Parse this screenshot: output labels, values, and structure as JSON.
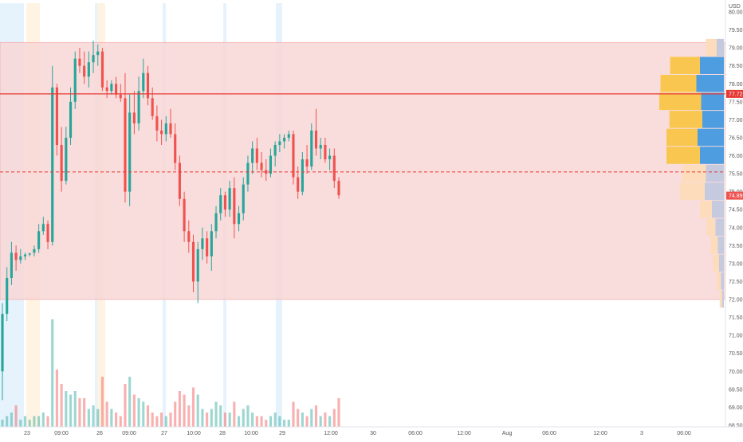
{
  "currency": "USD",
  "price_axis": {
    "ticks": [
      "80.00",
      "79.50",
      "79.00",
      "78.50",
      "78.00",
      "77.50",
      "77.00",
      "76.50",
      "76.00",
      "75.50",
      "75.00",
      "74.50",
      "74.00",
      "73.50",
      "73.00",
      "72.50",
      "72.00",
      "71.50",
      "71.00",
      "70.50",
      "70.00",
      "69.50",
      "69.00",
      "68.50"
    ],
    "last_price_label": "74.89",
    "line_price_label": "77.72"
  },
  "time_axis": {
    "ticks": [
      "23",
      "09:00",
      "26",
      "09:00",
      "27",
      "10:00",
      "28",
      "10:00",
      "29",
      "12:00",
      "30",
      "06:00",
      "12:00",
      "Aug",
      "06:00",
      "12:00",
      "3",
      "06:00"
    ]
  },
  "colors": {
    "up": "#26a69a",
    "down": "#ef5350",
    "zone_fill": "#f8d7d7",
    "zone_border": "#f0a5a5",
    "hline": "#e53935",
    "last_price_bg": "#ef5350",
    "vp_up": "#f9c74f",
    "vp_down": "#4d9de0",
    "vp_up_faint": "#fddcbb",
    "vp_down_faint": "#c5cadf",
    "session_blue": "#e3f2fd",
    "session_orange": "#fff3e0"
  },
  "chart_data": {
    "type": "candlestick",
    "ylim": [
      68.2,
      80.4
    ],
    "price_zone": [
      72.0,
      79.15
    ],
    "horizontal_line": 77.72,
    "dashed_line": 75.55,
    "last_price": 74.89,
    "candles": [
      [
        70.0,
        71.9,
        69.2,
        71.6
      ],
      [
        71.6,
        72.9,
        71.4,
        72.6
      ],
      [
        72.6,
        73.6,
        72.4,
        73.3
      ],
      [
        73.3,
        73.5,
        72.8,
        73.1
      ],
      [
        73.1,
        73.4,
        73.0,
        73.2
      ],
      [
        73.2,
        73.3,
        73.1,
        73.25
      ],
      [
        73.25,
        73.3,
        73.2,
        73.28
      ],
      [
        73.3,
        73.5,
        73.2,
        73.4
      ],
      [
        73.4,
        74.1,
        73.3,
        73.9
      ],
      [
        73.9,
        74.3,
        73.8,
        74.1
      ],
      [
        74.1,
        74.2,
        73.4,
        73.6
      ],
      [
        73.6,
        78.5,
        73.5,
        77.9
      ],
      [
        77.9,
        78.0,
        76.0,
        76.3
      ],
      [
        76.3,
        76.8,
        75.0,
        75.3
      ],
      [
        75.3,
        76.8,
        75.2,
        76.5
      ],
      [
        76.5,
        77.9,
        76.3,
        77.5
      ],
      [
        77.5,
        78.9,
        77.3,
        78.7
      ],
      [
        78.7,
        79.0,
        78.3,
        78.5
      ],
      [
        78.5,
        78.9,
        78.0,
        78.2
      ],
      [
        78.2,
        78.9,
        77.9,
        78.6
      ],
      [
        78.6,
        79.2,
        78.3,
        78.8
      ],
      [
        78.8,
        79.1,
        78.5,
        78.9
      ],
      [
        78.9,
        79.0,
        77.8,
        77.9
      ],
      [
        77.9,
        78.1,
        77.6,
        77.8
      ],
      [
        77.8,
        78.1,
        77.7,
        78.0
      ],
      [
        78.0,
        78.2,
        77.6,
        77.7
      ],
      [
        77.7,
        78.0,
        77.5,
        77.6
      ],
      [
        77.6,
        78.3,
        74.7,
        75.0
      ],
      [
        75.0,
        77.7,
        74.6,
        77.2
      ],
      [
        77.2,
        77.8,
        76.6,
        76.9
      ],
      [
        76.9,
        78.2,
        76.7,
        77.8
      ],
      [
        77.8,
        78.7,
        77.6,
        78.3
      ],
      [
        78.3,
        78.5,
        77.4,
        77.6
      ],
      [
        77.6,
        77.9,
        77.0,
        77.1
      ],
      [
        77.1,
        77.4,
        76.4,
        76.7
      ],
      [
        76.7,
        77.0,
        76.3,
        76.6
      ],
      [
        76.6,
        77.1,
        76.4,
        76.9
      ],
      [
        76.9,
        77.3,
        76.5,
        76.6
      ],
      [
        76.6,
        76.9,
        75.6,
        75.8
      ],
      [
        75.8,
        76.0,
        74.6,
        74.8
      ],
      [
        74.8,
        75.0,
        73.6,
        73.9
      ],
      [
        73.9,
        74.2,
        73.3,
        73.6
      ],
      [
        73.6,
        73.8,
        72.2,
        72.5
      ],
      [
        72.5,
        73.6,
        71.9,
        73.4
      ],
      [
        73.4,
        74.0,
        73.1,
        73.7
      ],
      [
        73.7,
        73.9,
        73.0,
        73.2
      ],
      [
        73.2,
        74.1,
        72.8,
        73.9
      ],
      [
        73.9,
        74.6,
        73.7,
        74.4
      ],
      [
        74.4,
        75.1,
        74.2,
        74.9
      ],
      [
        74.9,
        75.0,
        74.3,
        74.5
      ],
      [
        74.5,
        75.3,
        74.3,
        75.1
      ],
      [
        75.1,
        75.4,
        73.7,
        74.1
      ],
      [
        74.1,
        74.6,
        73.9,
        74.4
      ],
      [
        74.4,
        75.4,
        74.2,
        75.2
      ],
      [
        75.2,
        76.0,
        75.0,
        75.8
      ],
      [
        75.8,
        76.4,
        75.5,
        76.2
      ],
      [
        76.2,
        76.5,
        75.6,
        75.8
      ],
      [
        75.8,
        76.1,
        75.4,
        75.6
      ],
      [
        75.6,
        75.9,
        75.3,
        75.5
      ],
      [
        75.5,
        76.2,
        75.4,
        76.0
      ],
      [
        76.0,
        76.4,
        75.7,
        76.3
      ],
      [
        76.3,
        76.6,
        76.1,
        76.4
      ],
      [
        76.4,
        76.6,
        76.2,
        76.5
      ],
      [
        76.5,
        76.7,
        76.4,
        76.6
      ],
      [
        76.6,
        76.7,
        75.2,
        75.4
      ],
      [
        75.4,
        75.7,
        74.8,
        75.0
      ],
      [
        75.0,
        76.1,
        74.9,
        75.9
      ],
      [
        75.9,
        76.3,
        75.5,
        75.7
      ],
      [
        75.7,
        76.9,
        75.6,
        76.7
      ],
      [
        76.7,
        77.3,
        76.0,
        76.2
      ],
      [
        76.2,
        76.5,
        75.9,
        76.3
      ],
      [
        76.3,
        76.5,
        75.8,
        75.9
      ],
      [
        75.9,
        76.2,
        75.6,
        76.0
      ],
      [
        76.0,
        76.2,
        75.1,
        75.3
      ],
      [
        75.3,
        75.4,
        74.8,
        74.9
      ]
    ],
    "volumes": [
      2.0,
      3.0,
      4.0,
      6.0,
      2.0,
      3.0,
      2.0,
      3.0,
      3.0,
      4.0,
      3.0,
      30.0,
      16.0,
      12.0,
      10.0,
      9.0,
      10.0,
      8.0,
      8.0,
      5.0,
      6.0,
      5.0,
      14.0,
      7.0,
      5.0,
      4.0,
      3.0,
      12.0,
      14.0,
      9.0,
      8.0,
      7.0,
      6.0,
      4.0,
      3.0,
      4.0,
      3.0,
      4.0,
      7.0,
      10.0,
      9.0,
      6.0,
      11.0,
      9.0,
      5.0,
      4.0,
      5.0,
      7.0,
      6.0,
      4.0,
      4.0,
      7.0,
      3.0,
      5.0,
      6.0,
      4.0,
      3.0,
      3.0,
      2.0,
      3.0,
      4.0,
      3.0,
      2.0,
      2.0,
      7.0,
      5.0,
      4.0,
      3.0,
      5.0,
      6.0,
      3.0,
      4.0,
      3.0,
      5.0,
      8.0
    ],
    "volume_profile": [
      [
        79.0,
        18,
        12
      ],
      [
        78.5,
        50,
        40
      ],
      [
        78.0,
        60,
        46
      ],
      [
        77.5,
        70,
        38
      ],
      [
        77.0,
        55,
        36
      ],
      [
        76.5,
        52,
        44
      ],
      [
        76.0,
        56,
        40
      ],
      [
        75.5,
        40,
        30
      ],
      [
        75.0,
        42,
        32
      ],
      [
        74.5,
        20,
        20
      ],
      [
        74.0,
        15,
        14
      ],
      [
        73.5,
        12,
        10
      ],
      [
        73.0,
        10,
        8
      ],
      [
        72.5,
        7,
        5
      ],
      [
        72.0,
        4,
        3
      ]
    ]
  }
}
